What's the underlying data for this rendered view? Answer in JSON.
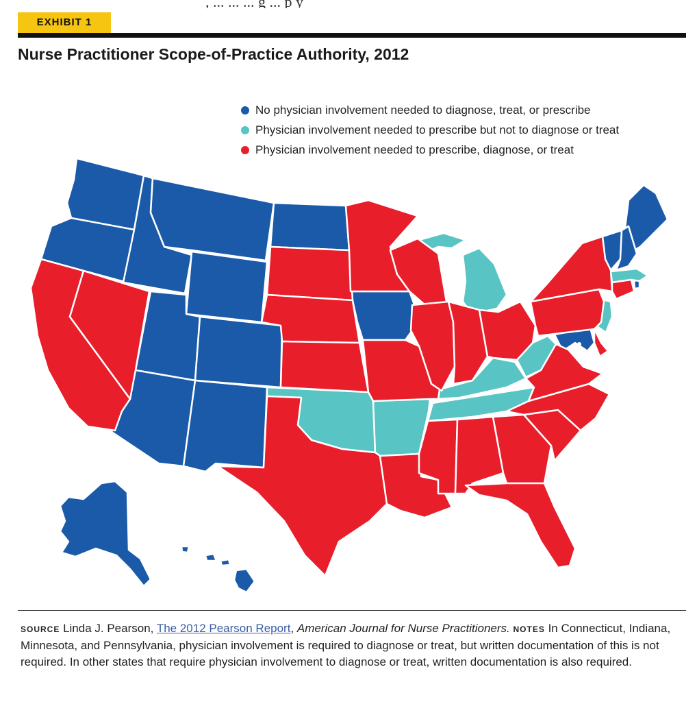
{
  "exhibit_label": "EXHIBIT 1",
  "top_cutoff_text": ", ... ... ... g ... p y",
  "title": "Nurse Practitioner Scope-of-Practice Authority, 2012",
  "colors": {
    "blue": "#1a5aa8",
    "teal": "#58c4c4",
    "red": "#e81e2a",
    "accent": "#f5c512"
  },
  "legend": [
    {
      "label": "No physician involvement needed to diagnose, treat, or prescribe",
      "color": "#1a5aa8"
    },
    {
      "label": "Physician involvement needed to prescribe but not to diagnose or treat",
      "color": "#58c4c4"
    },
    {
      "label": "Physician involvement needed to prescribe, diagnose, or treat",
      "color": "#e81e2a"
    }
  ],
  "states": {
    "WA": "No physician involvement",
    "OR": "No physician involvement",
    "ID": "No physician involvement",
    "MT": "No physician involvement",
    "WY": "No physician involvement",
    "ND": "No physician involvement",
    "UT": "No physician involvement",
    "CO": "No physician involvement",
    "AZ": "No physician involvement",
    "NM": "No physician involvement",
    "IA": "No physician involvement",
    "ME": "No physician involvement",
    "VT": "No physician involvement",
    "NH": "No physician involvement",
    "MD": "No physician involvement",
    "RI": "No physician involvement",
    "DC": "No physician involvement",
    "AK": "No physician involvement",
    "HI": "No physician involvement",
    "MI": "Prescribe only",
    "OK": "Prescribe only",
    "AR": "Prescribe only",
    "KY": "Prescribe only",
    "TN": "Prescribe only",
    "WV": "Prescribe only",
    "NJ": "Prescribe only",
    "MA": "Prescribe only",
    "CA": "Prescribe, diagnose, or treat",
    "NV": "Prescribe, diagnose, or treat",
    "SD": "Prescribe, diagnose, or treat",
    "NE": "Prescribe, diagnose, or treat",
    "KS": "Prescribe, diagnose, or treat",
    "TX": "Prescribe, diagnose, or treat",
    "MN": "Prescribe, diagnose, or treat",
    "WI": "Prescribe, diagnose, or treat",
    "IL": "Prescribe, diagnose, or treat",
    "MO": "Prescribe, diagnose, or treat",
    "LA": "Prescribe, diagnose, or treat",
    "MS": "Prescribe, diagnose, or treat",
    "AL": "Prescribe, diagnose, or treat",
    "GA": "Prescribe, diagnose, or treat",
    "FL": "Prescribe, diagnose, or treat",
    "SC": "Prescribe, diagnose, or treat",
    "NC": "Prescribe, diagnose, or treat",
    "VA": "Prescribe, diagnose, or treat",
    "IN": "Prescribe, diagnose, or treat",
    "OH": "Prescribe, diagnose, or treat",
    "PA": "Prescribe, diagnose, or treat",
    "NY": "Prescribe, diagnose, or treat",
    "CT": "Prescribe, diagnose, or treat",
    "DE": "Prescribe, diagnose, or treat"
  },
  "footer": {
    "source_label": "SOURCE",
    "source_author": "Linda J. Pearson,",
    "source_link": "The 2012 Pearson Report",
    "source_comma": ",",
    "source_journal": "American Journal for Nurse Practitioners.",
    "notes_label": "NOTES",
    "notes_text": "In Connecticut, Indiana, Minnesota, and Pennsylvania, physician involvement is required to diagnose or treat, but written documentation of this is not required. In other states that require physician involvement to diagnose or treat, written documentation is also required."
  }
}
